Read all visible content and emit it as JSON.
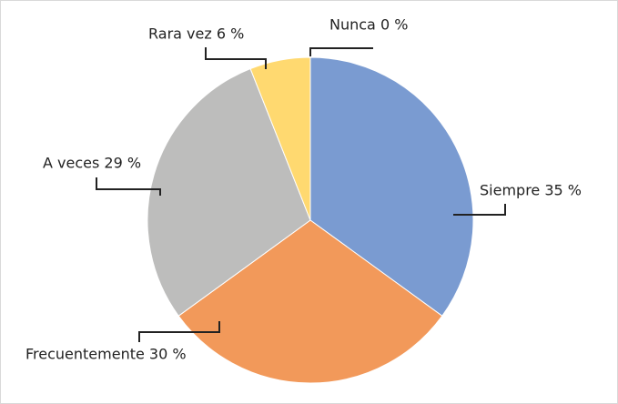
{
  "chart_data": {
    "type": "pie",
    "values": [
      35,
      30,
      29,
      6,
      0
    ],
    "value_labels": [
      "Siempre 35 %",
      "Frecuentemente 30 %",
      "A veces 29 %",
      "Rara vez 6 %",
      "Nunca 0 %"
    ],
    "colors": [
      "#7a9bd1",
      "#f2995a",
      "#bdbdbc",
      "#ffd970",
      "#4472c4"
    ]
  }
}
